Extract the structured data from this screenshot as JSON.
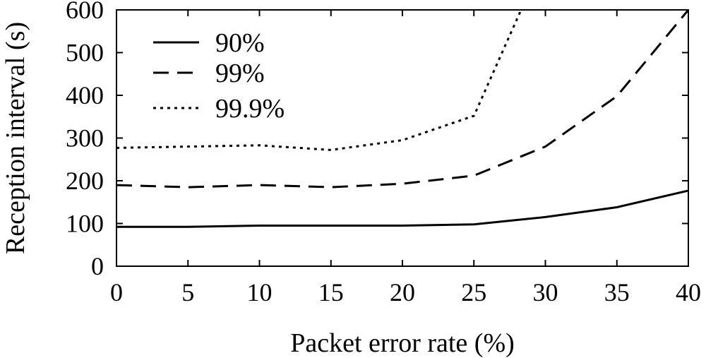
{
  "chart_data": {
    "type": "line",
    "title": "",
    "xlabel": "Packet error rate (%)",
    "ylabel": "Reception interval (s)",
    "xlim": [
      0,
      40
    ],
    "ylim": [
      0,
      600
    ],
    "x_ticks": [
      0,
      5,
      10,
      15,
      20,
      25,
      30,
      35,
      40
    ],
    "y_ticks": [
      0,
      100,
      200,
      300,
      400,
      500,
      600
    ],
    "x_tick_labels": [
      "0",
      "5",
      "10",
      "15",
      "20",
      "25",
      "30",
      "35",
      "40"
    ],
    "y_tick_labels": [
      "0",
      "100",
      "200",
      "300",
      "400",
      "500",
      "600"
    ],
    "grid": false,
    "legend_position": "top-left",
    "series": [
      {
        "name": "90%",
        "style": "solid",
        "x": [
          0,
          5,
          10,
          15,
          20,
          25,
          30,
          35,
          40
        ],
        "y": [
          92,
          92,
          95,
          95,
          95,
          98,
          115,
          138,
          177
        ]
      },
      {
        "name": "99%",
        "style": "dashed",
        "x": [
          0,
          5,
          10,
          15,
          20,
          25,
          30,
          35,
          40
        ],
        "y": [
          190,
          185,
          190,
          185,
          193,
          212,
          280,
          398,
          600
        ]
      },
      {
        "name": "99.9%",
        "style": "dotted",
        "x": [
          0,
          5,
          10,
          15,
          20,
          25,
          28.3
        ],
        "y": [
          277,
          280,
          283,
          272,
          295,
          352,
          600
        ]
      }
    ],
    "colors": {
      "line": "#000000",
      "axis": "#000000",
      "background": "#ffffff"
    }
  }
}
